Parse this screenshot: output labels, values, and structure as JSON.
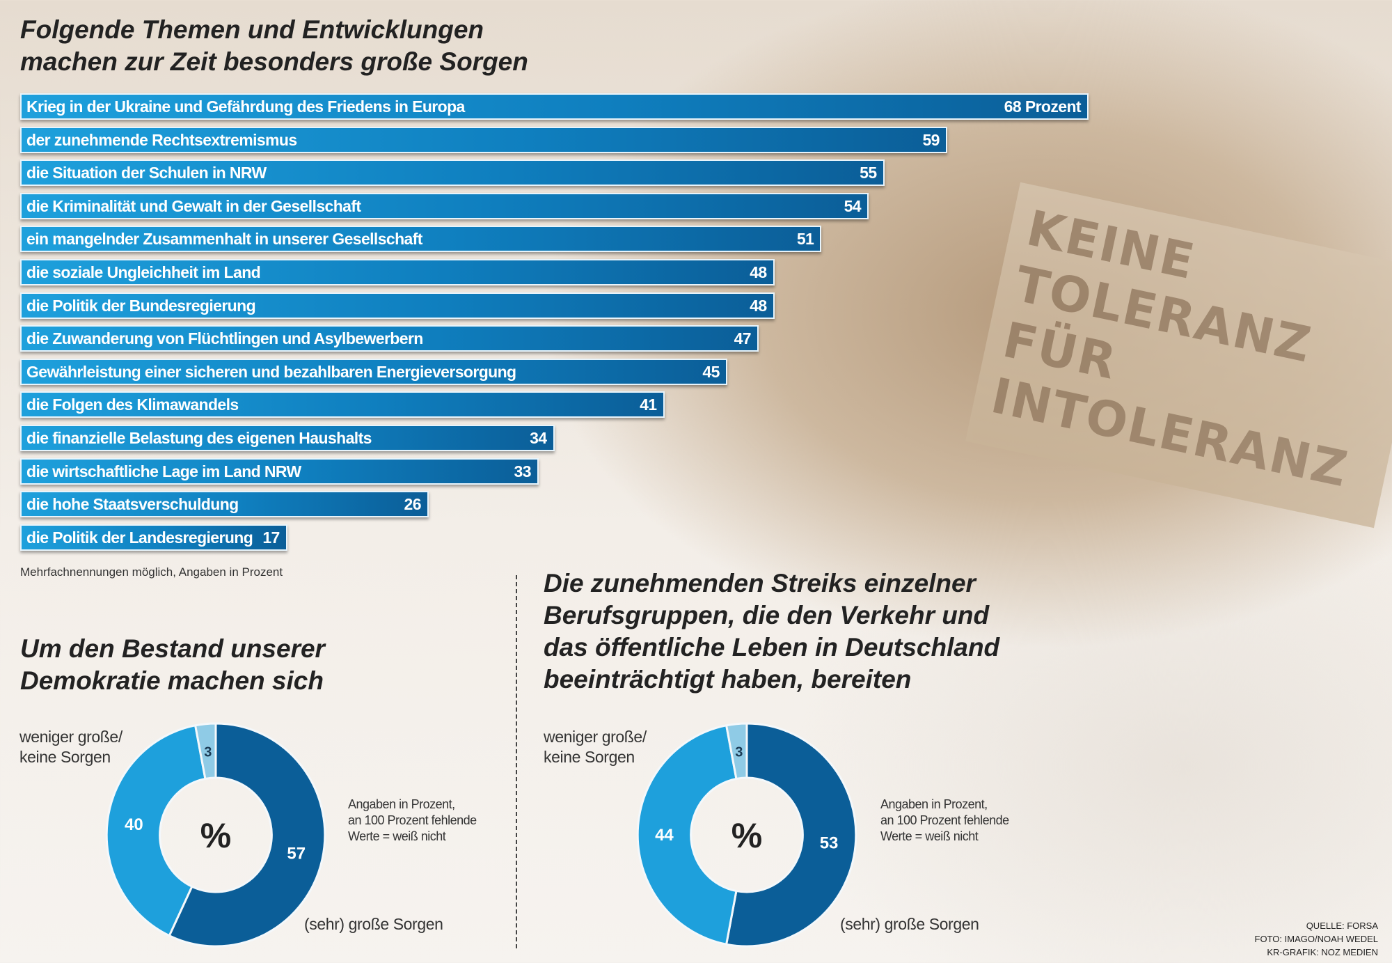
{
  "chart_data": [
    {
      "type": "bar",
      "orientation": "horizontal",
      "title": [
        "Folgende Themen und Entwicklungen",
        "machen zur Zeit besonders große Sorgen"
      ],
      "categories": [
        "Krieg in der Ukraine und Gefährdung des Friedens in Europa",
        "der zunehmende Rechtsextremismus",
        "die Situation der Schulen in NRW",
        "die Kriminalität und Gewalt in der Gesellschaft",
        "ein mangelnder Zusammenhalt in unserer Gesellschaft",
        "die soziale Ungleichheit im Land",
        "die Politik der Bundesregierung",
        "die Zuwanderung von Flüchtlingen und Asylbewerbern",
        "Gewährleistung einer sicheren und bezahlbaren Energieversorgung",
        "die Folgen des Klimawandels",
        "die finanzielle Belastung des eigenen Haushalts",
        "die wirtschaftliche Lage im Land NRW",
        "die hohe Staatsverschuldung",
        "die Politik der Landesregierung"
      ],
      "values": [
        68,
        59,
        55,
        54,
        51,
        48,
        48,
        47,
        45,
        41,
        34,
        33,
        26,
        17
      ],
      "value_labels": [
        "68 Prozent",
        "59",
        "55",
        "54",
        "51",
        "48",
        "48",
        "47",
        "45",
        "41",
        "34",
        "33",
        "26",
        "17"
      ],
      "note": "Mehrfachnennungen möglich, Angaben in Prozent",
      "colors": {
        "bar_start": "#1ea0dc",
        "bar_end": "#0b5e98"
      }
    },
    {
      "type": "pie",
      "donut": true,
      "title": [
        "Um den Bestand unserer",
        "Demokratie machen sich"
      ],
      "center_label": "%",
      "slices": [
        {
          "label": "(sehr) große Sorgen",
          "value": 57,
          "color": "#0b5e98"
        },
        {
          "label": [
            "weniger große/",
            "keine Sorgen"
          ],
          "value": 40,
          "color": "#1ea0dc"
        },
        {
          "label": "",
          "value": 3,
          "color": "#8fcbe6"
        }
      ],
      "note": [
        "Angaben in Prozent,",
        "an 100 Prozent fehlende",
        "Werte = weiß nicht"
      ]
    },
    {
      "type": "pie",
      "donut": true,
      "title": [
        "Die zunehmenden Streiks einzelner",
        "Berufsgruppen, die den Verkehr und",
        "das öffentliche Leben in Deutschland",
        "beeinträchtigt haben, bereiten"
      ],
      "center_label": "%",
      "slices": [
        {
          "label": "(sehr) große Sorgen",
          "value": 53,
          "color": "#0b5e98"
        },
        {
          "label": [
            "weniger große/",
            "keine Sorgen"
          ],
          "value": 44,
          "color": "#1ea0dc"
        },
        {
          "label": "",
          "value": 3,
          "color": "#8fcbe6"
        }
      ],
      "note": [
        "Angaben in Prozent,",
        "an 100 Prozent fehlende",
        "Werte = weiß nicht"
      ]
    }
  ],
  "photo": {
    "sign_text": [
      "KEINE TOLERANZ",
      "FÜR INTOLERANZ"
    ]
  },
  "source": [
    "QUELLE: FORSA",
    "FOTO: IMAGO/NOAH WEDEL",
    "KR-GRAFIK: NOZ MEDIEN"
  ]
}
